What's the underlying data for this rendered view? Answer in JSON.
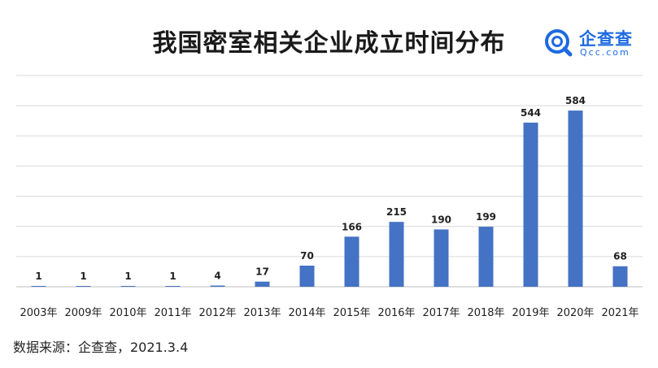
{
  "title": "我国密室相关企业成立时间分布",
  "logo": {
    "name": "企查查",
    "url": "Qcc.com"
  },
  "source": "数据来源：企查查，2021.3.4",
  "colors": {
    "bar": "#4472c4",
    "grid": "#d9d9d9",
    "logo": "#1e6ae0"
  },
  "chart_data": {
    "type": "bar",
    "title": "我国密室相关企业成立时间分布",
    "categories": [
      "2003年",
      "2009年",
      "2010年",
      "2011年",
      "2012年",
      "2013年",
      "2014年",
      "2015年",
      "2016年",
      "2017年",
      "2018年",
      "2019年",
      "2020年",
      "2021年"
    ],
    "values": [
      1,
      1,
      1,
      1,
      4,
      17,
      70,
      166,
      215,
      190,
      199,
      544,
      584,
      68
    ],
    "xlabel": "",
    "ylabel": "",
    "ylim": [
      0,
      700
    ],
    "grid": true,
    "legend": "none"
  }
}
